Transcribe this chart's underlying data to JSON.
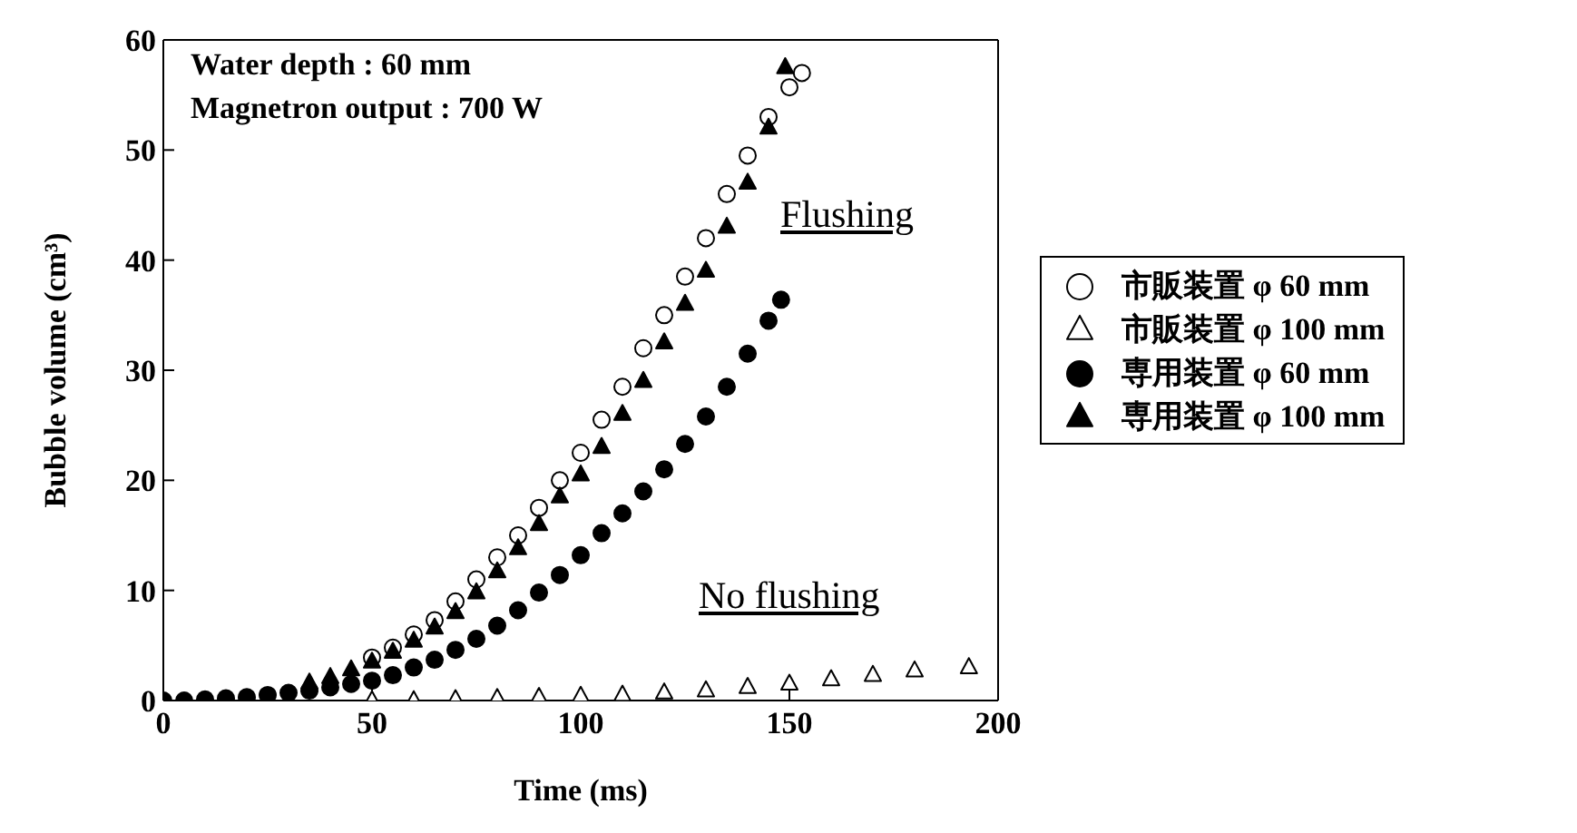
{
  "chart_data": {
    "type": "scatter",
    "xlabel": "Time (ms)",
    "ylabel": "Bubble volume (cm³)",
    "xlim": [
      0,
      200
    ],
    "xticks": [
      0,
      50,
      100,
      150,
      200
    ],
    "ylim": [
      0,
      60
    ],
    "yticks": [
      0,
      10,
      20,
      30,
      40,
      50,
      60
    ],
    "grid": false,
    "legend": "right",
    "annotations": [
      "Water depth : 60 mm",
      "Magnetron output : 700 W",
      "Flushing",
      "No flushing"
    ],
    "series": [
      {
        "name": "市販装置 φ 60 mm",
        "color": "#ffffff",
        "marker": "circle",
        "x": [
          50,
          55,
          60,
          65,
          70,
          75,
          80,
          85,
          90,
          95,
          100,
          105,
          110,
          115,
          120,
          125,
          130,
          135,
          140,
          145,
          150,
          153
        ],
        "values": [
          3.9,
          4.8,
          6,
          7.3,
          9,
          11,
          13,
          15,
          17.5,
          20,
          22.5,
          25.5,
          28.5,
          32,
          35,
          38.5,
          42,
          46,
          49.5,
          53,
          55.7,
          57
        ]
      },
      {
        "name": "市販装置 φ 100 mm",
        "color": "#ffffff",
        "marker": "triangle",
        "x": [
          50,
          60,
          70,
          80,
          90,
          100,
          110,
          120,
          130,
          140,
          150,
          160,
          170,
          180,
          193
        ],
        "values": [
          0,
          0,
          0.1,
          0.2,
          0.3,
          0.4,
          0.5,
          0.7,
          0.9,
          1.2,
          1.5,
          1.9,
          2.3,
          2.7,
          3.0
        ]
      },
      {
        "name": "専用装置 φ 60 mm",
        "color": "#000000",
        "marker": "circle",
        "x": [
          0,
          5,
          10,
          15,
          20,
          25,
          30,
          35,
          40,
          45,
          50,
          55,
          60,
          65,
          70,
          75,
          80,
          85,
          90,
          95,
          100,
          105,
          110,
          115,
          120,
          125,
          130,
          135,
          140,
          145,
          148
        ],
        "values": [
          0,
          0,
          0.1,
          0.2,
          0.3,
          0.5,
          0.7,
          0.9,
          1.2,
          1.5,
          1.8,
          2.3,
          3,
          3.7,
          4.6,
          5.6,
          6.8,
          8.2,
          9.8,
          11.4,
          13.2,
          15.2,
          17,
          19,
          21,
          23.3,
          25.8,
          28.5,
          31.5,
          34.5,
          36.4
        ]
      },
      {
        "name": "専用装置 φ 100 mm",
        "color": "#000000",
        "marker": "triangle",
        "x": [
          35,
          40,
          45,
          50,
          55,
          60,
          65,
          70,
          75,
          80,
          85,
          90,
          95,
          100,
          105,
          110,
          115,
          120,
          125,
          130,
          135,
          140,
          145,
          149
        ],
        "values": [
          1.6,
          2.1,
          2.8,
          3.5,
          4.4,
          5.4,
          6.6,
          8,
          9.8,
          11.7,
          13.8,
          16,
          18.5,
          20.5,
          23,
          26,
          29,
          32.5,
          36,
          39,
          43,
          47,
          52,
          57.5
        ]
      }
    ]
  }
}
